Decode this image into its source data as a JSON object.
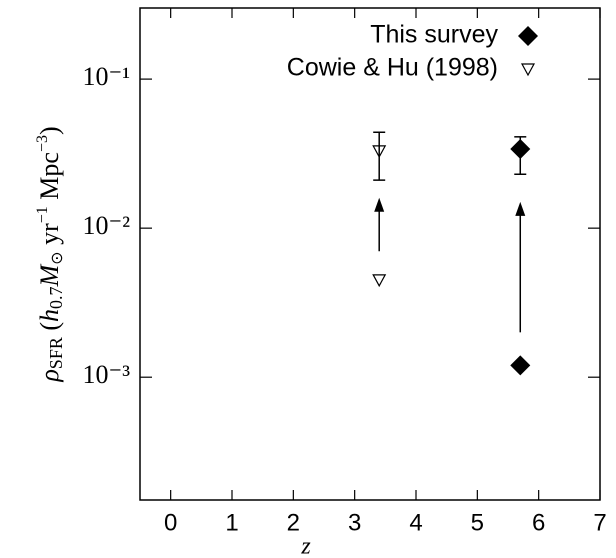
{
  "chart_data": {
    "type": "scatter",
    "xlabel": "z",
    "ylabel_parts": [
      "ρ",
      "SFR",
      " (",
      "h",
      "0.7",
      "M",
      "⊙",
      " yr",
      "−1",
      " Mpc",
      "−3",
      ")"
    ],
    "xlim": [
      -0.5,
      7
    ],
    "xticks": [
      0,
      1,
      2,
      3,
      4,
      5,
      6,
      7
    ],
    "ylim": [
      0.00015,
      0.3
    ],
    "log_y": true,
    "yticks": [
      {
        "value": 0.1,
        "label": "10⁻¹"
      },
      {
        "value": 0.01,
        "label": "10⁻²"
      },
      {
        "value": 0.001,
        "label": "10⁻³"
      }
    ],
    "series": [
      {
        "name": "This survey",
        "marker": "diamond",
        "color": "#000000",
        "x": [
          5.7,
          5.7
        ],
        "values": [
          0.034,
          0.0012
        ],
        "err_low": [
          0.023,
          null
        ],
        "err_high": [
          0.041,
          null
        ]
      },
      {
        "name": "Cowie & Hu (1998)",
        "marker": "triangle-open",
        "color": "#000000",
        "x": [
          3.4,
          3.4
        ],
        "values": [
          0.033,
          0.0045
        ],
        "err_low": [
          0.021,
          null
        ],
        "err_high": [
          0.044,
          null
        ]
      }
    ],
    "arrows": [
      {
        "x": 3.4,
        "from": 0.007,
        "to": 0.016
      },
      {
        "x": 5.7,
        "from": 0.002,
        "to": 0.015
      }
    ],
    "legend": "upper-right"
  }
}
